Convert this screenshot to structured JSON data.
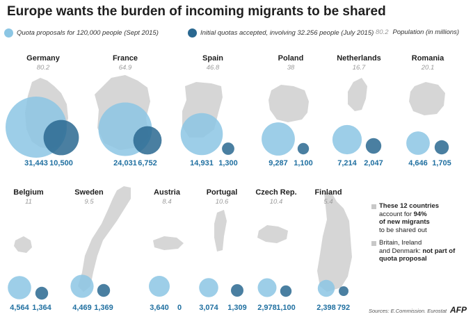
{
  "colors": {
    "quota": "#8cc6e4",
    "accepted": "#2a6890",
    "map": "#d6d6d6",
    "number": "#1f6fa0"
  },
  "chart_data": {
    "type": "bubble",
    "title": "Europe wants the burden of incoming migrants to be shared",
    "legend": {
      "quota": "Quota proposals for 120,000 people (Sept 2015)",
      "accepted": "Initial quotas accepted, involving 32.256 people (July 2015)",
      "population_example": "80.2",
      "population": "Population (in millions)"
    },
    "countries": [
      {
        "name": "Germany",
        "population": "80.2",
        "quota": 31443,
        "accepted": 10500,
        "quota_label": "31,443",
        "accepted_label": "10,500"
      },
      {
        "name": "France",
        "population": "64.9",
        "quota": 24031,
        "accepted": 6752,
        "quota_label": "24,031",
        "accepted_label": "6,752"
      },
      {
        "name": "Spain",
        "population": "46.8",
        "quota": 14931,
        "accepted": 1300,
        "quota_label": "14,931",
        "accepted_label": "1,300"
      },
      {
        "name": "Poland",
        "population": "38",
        "quota": 9287,
        "accepted": 1100,
        "quota_label": "9,287",
        "accepted_label": "1,100"
      },
      {
        "name": "Netherlands",
        "population": "16.7",
        "quota": 7214,
        "accepted": 2047,
        "quota_label": "7,214",
        "accepted_label": "2,047"
      },
      {
        "name": "Romania",
        "population": "20.1",
        "quota": 4646,
        "accepted": 1705,
        "quota_label": "4,646",
        "accepted_label": "1,705"
      },
      {
        "name": "Belgium",
        "population": "11",
        "quota": 4564,
        "accepted": 1364,
        "quota_label": "4,564",
        "accepted_label": "1,364"
      },
      {
        "name": "Sweden",
        "population": "9.5",
        "quota": 4469,
        "accepted": 1369,
        "quota_label": "4,469",
        "accepted_label": "1,369"
      },
      {
        "name": "Austria",
        "population": "8.4",
        "quota": 3640,
        "accepted": 0,
        "quota_label": "3,640",
        "accepted_label": "0"
      },
      {
        "name": "Portugal",
        "population": "10.6",
        "quota": 3074,
        "accepted": 1309,
        "quota_label": "3,074",
        "accepted_label": "1,309"
      },
      {
        "name": "Czech Rep.",
        "population": "10.4",
        "quota": 2978,
        "accepted": 1100,
        "quota_label": "2,978",
        "accepted_label": "1,100"
      },
      {
        "name": "Finland",
        "population": "5.4",
        "quota": 2398,
        "accepted": 792,
        "quota_label": "2,398",
        "accepted_label": "792"
      }
    ],
    "notes": {
      "note1_a": "These 12 countries",
      "note1_b": "account for",
      "note1_pct": "94%",
      "note1_c": "of new migrants",
      "note1_d": "to be shared out",
      "note2_a": "Britain, Ireland",
      "note2_b": "and Denmark:",
      "note2_c": "not part of quota proposal"
    },
    "sources": "Sources: E.Commission. Eurostat",
    "logo": "AFP"
  }
}
